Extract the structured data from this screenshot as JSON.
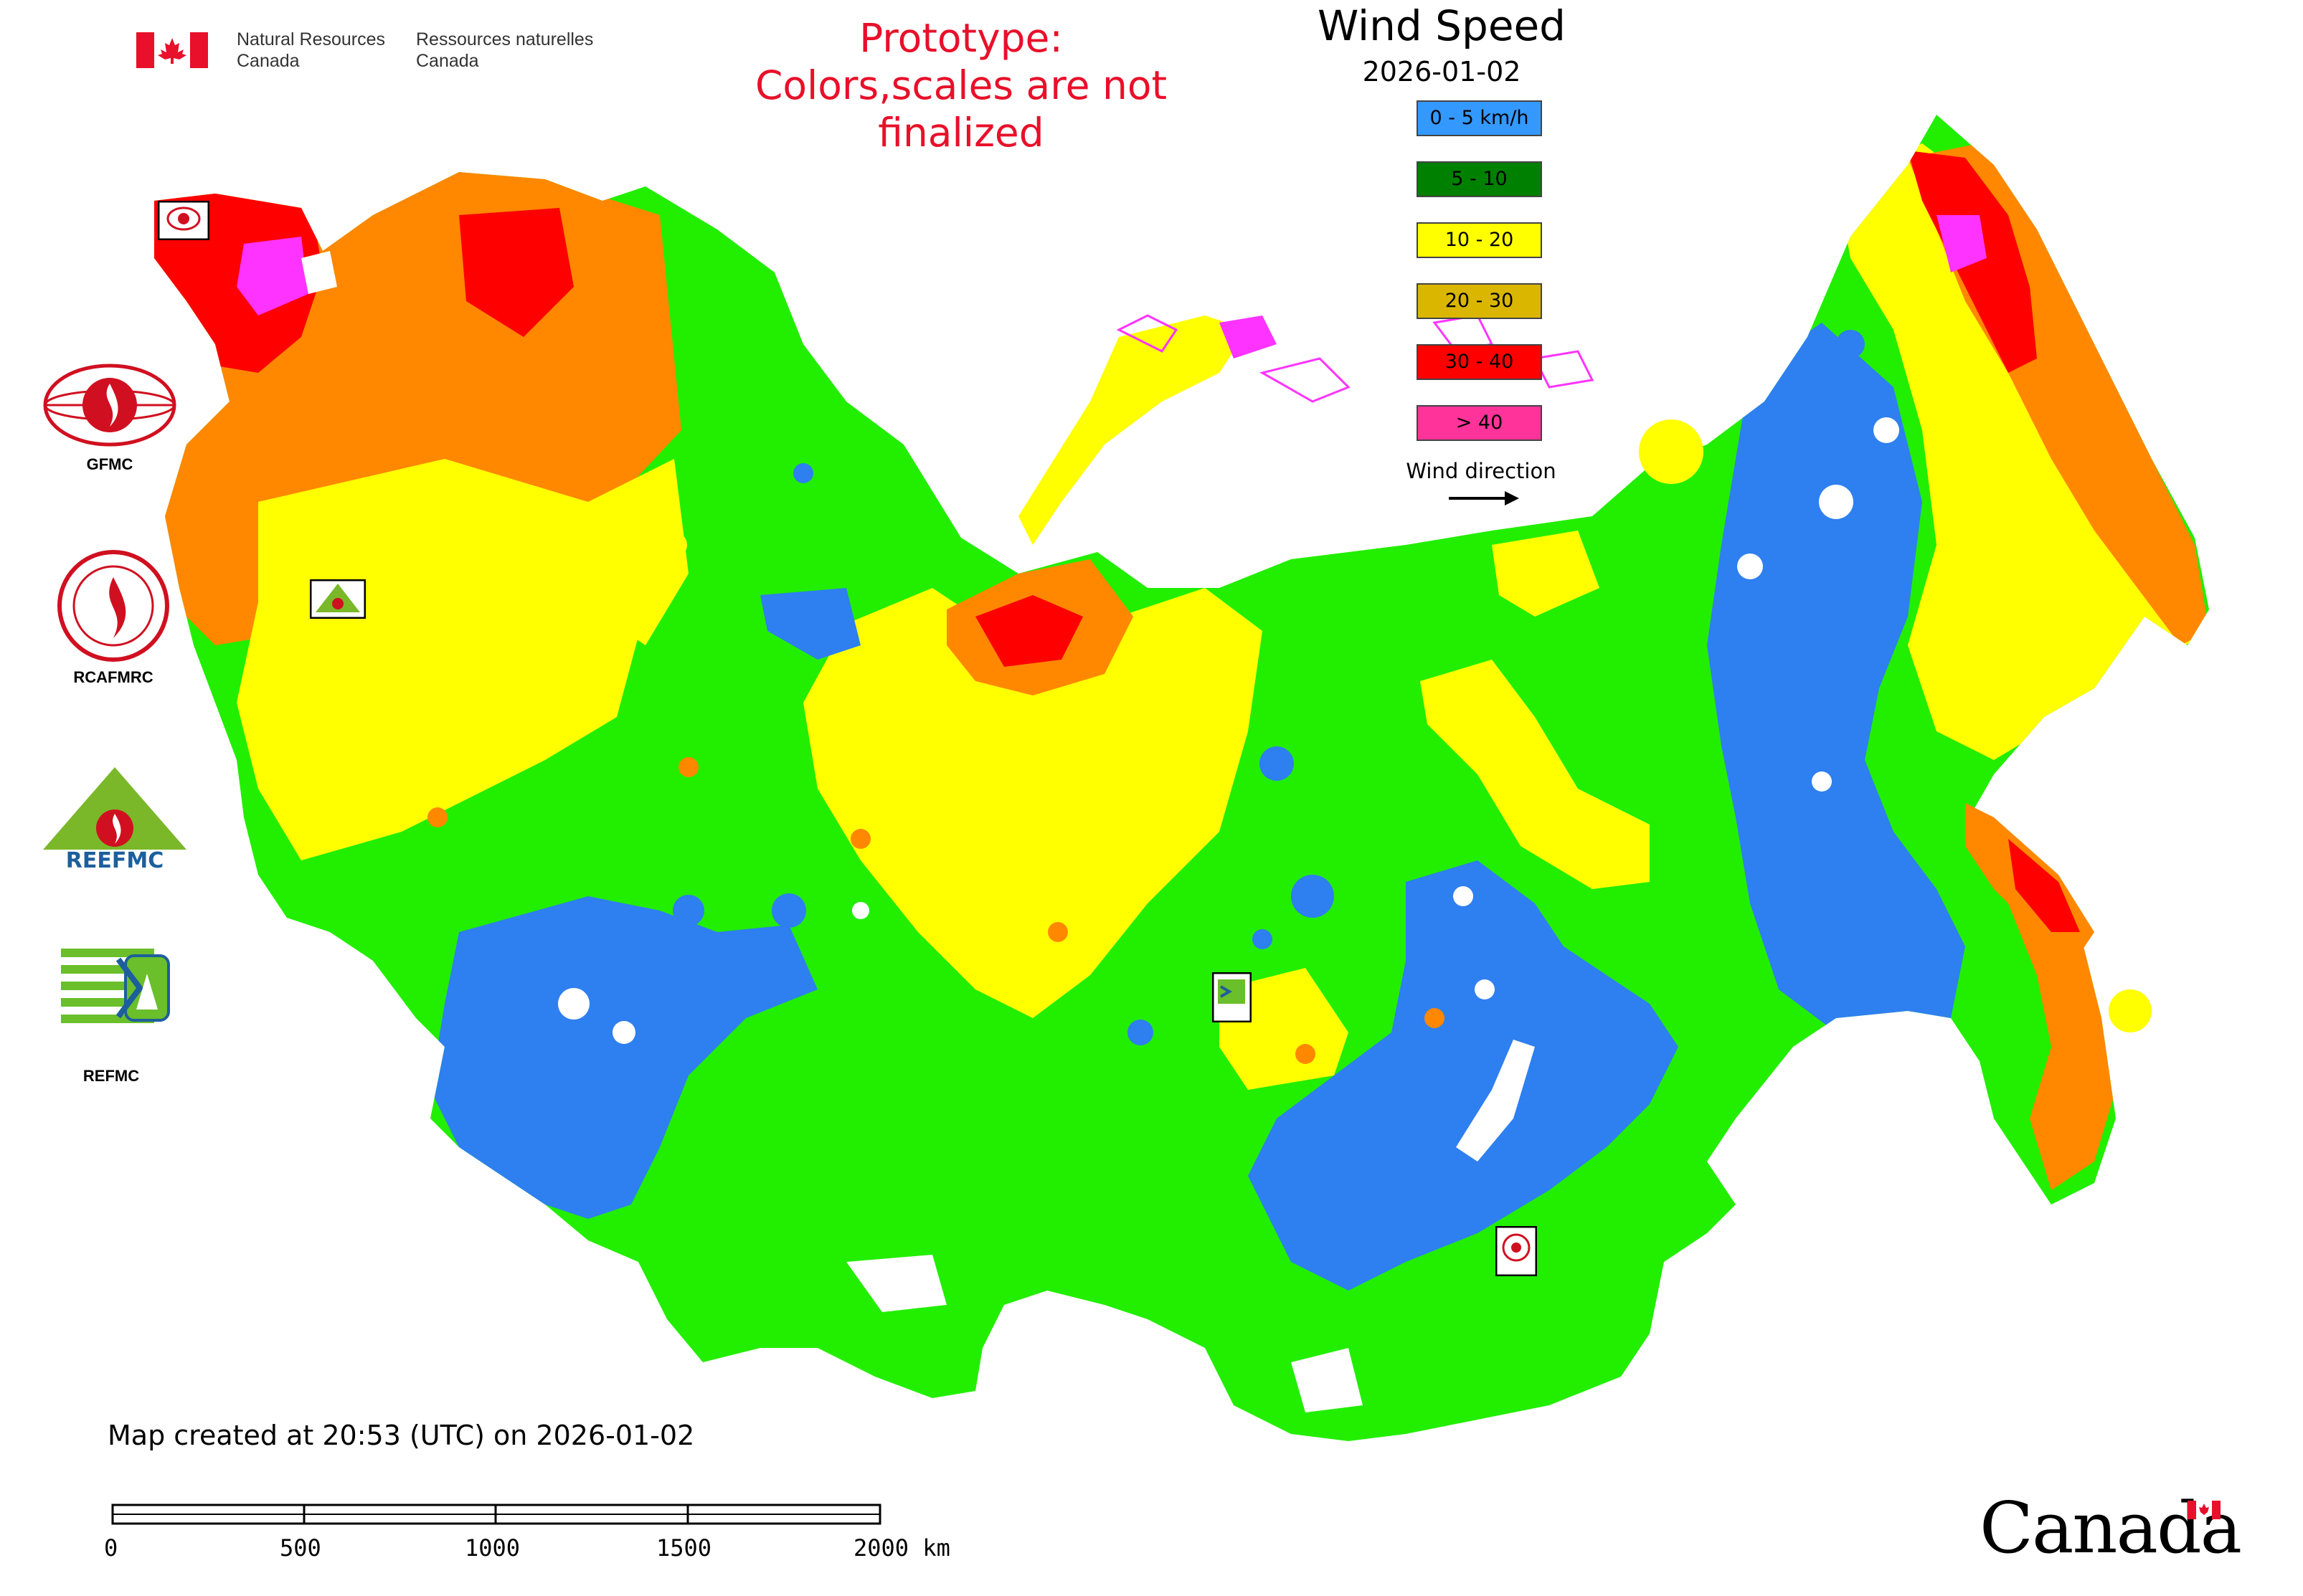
{
  "header": {
    "dept_en_line1": "Natural Resources",
    "dept_en_line2": "Canada",
    "dept_fr_line1": "Ressources naturelles",
    "dept_fr_line2": "Canada"
  },
  "notice": {
    "line1": "Prototype:",
    "line2": "Colors,scales are not finalized",
    "color": "#e8102a"
  },
  "legend": {
    "title": "Wind Speed",
    "date": "2026-01-02",
    "classes": [
      {
        "label": "0 - 5 km/h",
        "color": "#3399ff"
      },
      {
        "label": "5 - 10",
        "color": "#008000"
      },
      {
        "label": "10 - 20",
        "color": "#ffff00"
      },
      {
        "label": "20 - 30",
        "color": "#dab600"
      },
      {
        "label": "30 - 40",
        "color": "#ff0000"
      },
      {
        "label": "> 40",
        "color": "#ff3399"
      }
    ],
    "wind_direction_label": "Wind direction"
  },
  "map_colors": {
    "calm": "#2e7ff0",
    "low": "#22ee00",
    "moderate": "#ffff00",
    "high": "#ff8800",
    "very_high": "#ff0000",
    "extreme": "#ff33ff"
  },
  "logos": [
    {
      "label": "GFMC",
      "icon": "gfmc-logo-icon"
    },
    {
      "label": "RCAFMRC",
      "icon": "rcafmrc-logo-icon"
    },
    {
      "label": "REEFMC",
      "icon": "reefmc-logo-icon"
    },
    {
      "label": "REFMC",
      "icon": "refmc-logo-icon"
    }
  ],
  "footer": {
    "created": "Map created at 20:53 (UTC) on 2026-01-02",
    "scale_labels": [
      "0",
      "500",
      "1000",
      "1500",
      "2000 km"
    ],
    "wordmark": "Canada"
  }
}
